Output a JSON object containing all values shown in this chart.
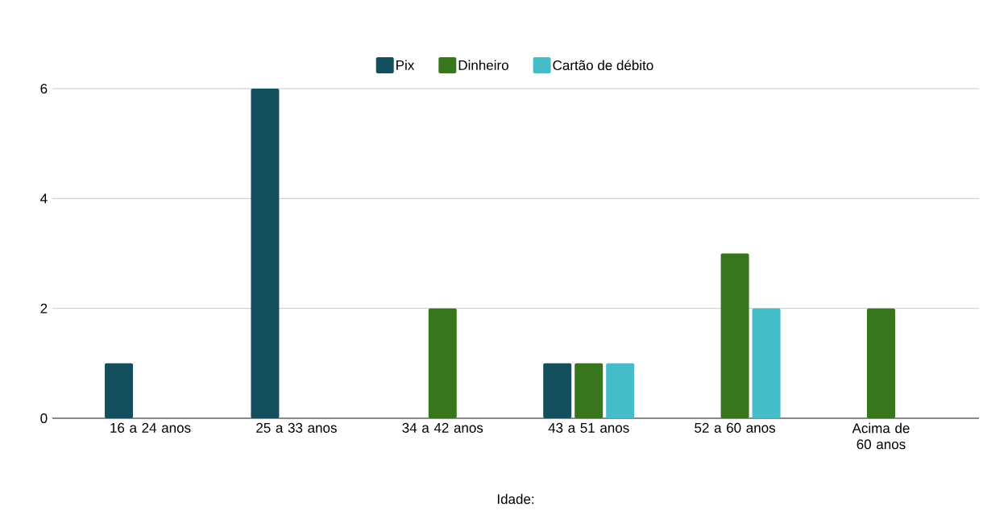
{
  "chart_data": {
    "type": "bar",
    "xlabel": "Idade:",
    "categories": [
      "16 a 24 anos",
      "25 a 33 anos",
      "34 a 42 anos",
      "43 a 51 anos",
      "52 a 60 anos",
      "Acima de 60 anos"
    ],
    "series": [
      {
        "name": "Pix",
        "color": "#134f5c",
        "values": [
          1,
          6,
          0,
          1,
          0,
          0
        ]
      },
      {
        "name": "Dinheiro",
        "color": "#38761d",
        "values": [
          0,
          0,
          2,
          1,
          3,
          2
        ]
      },
      {
        "name": "Cartão de débito",
        "color": "#45bdc9",
        "values": [
          0,
          0,
          0,
          1,
          2,
          0
        ]
      }
    ],
    "ylim": [
      0,
      6
    ],
    "yticks": [
      0,
      2,
      4,
      6
    ],
    "grid": "y",
    "legend": "top"
  }
}
